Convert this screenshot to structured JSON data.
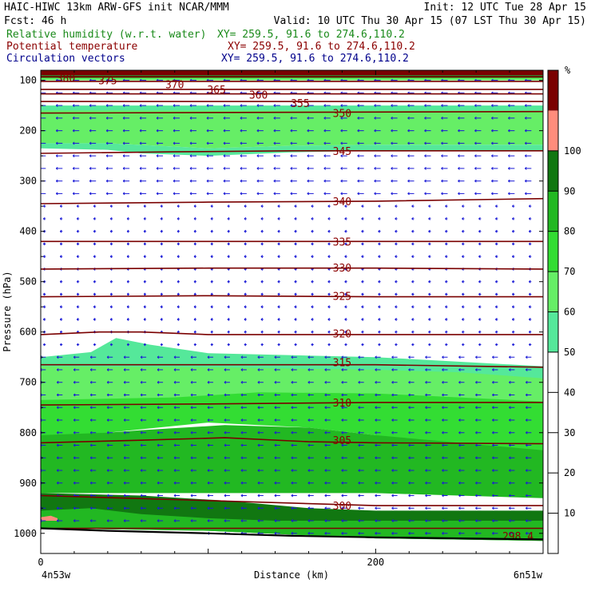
{
  "header": {
    "title_line": "HAIC-HIWC 13km ARW-GFS init    NCAR/MMM",
    "init": "Init: 12 UTC Tue 28 Apr 15",
    "fcst": "Fcst:   46 h",
    "valid": "Valid: 10 UTC Thu 30 Apr 15 (07 LST Thu 30 Apr 15)",
    "fields": [
      {
        "name": "Relative humidity (w.r.t. water)",
        "xy": "XY= 259.5, 91.6 to 274.6,110.2",
        "color": "#1a8a1a"
      },
      {
        "name": "Potential temperature",
        "xy": "XY= 259.5, 91.6 to 274.6,110.2",
        "color": "#8b0000"
      },
      {
        "name": "Circulation vectors",
        "xy": "XY= 259.5, 91.6 to 274.6,110.2",
        "color": "#00008b"
      }
    ]
  },
  "chart_data": {
    "type": "heatmap",
    "title": "",
    "xlabel": "Distance (km)",
    "ylabel": "Pressure (hPa)",
    "xlim": [
      0,
      300
    ],
    "ylim": [
      1050,
      50
    ],
    "x_ticks": [
      {
        "value": 0,
        "label": "0"
      },
      {
        "value": 200,
        "label": "200"
      }
    ],
    "x_endpoints": [
      "4n53w",
      "6n51w"
    ],
    "y_ticks": [
      100,
      200,
      300,
      400,
      500,
      600,
      700,
      800,
      900,
      1000
    ],
    "colorbar": {
      "unit": "%",
      "levels": [
        10,
        20,
        30,
        40,
        50,
        60,
        70,
        80,
        90,
        100
      ],
      "bins": [
        {
          "from": 0,
          "to": 50,
          "color": "#ffffff"
        },
        {
          "from": 50,
          "to": 60,
          "color": "#55e89a"
        },
        {
          "from": 60,
          "to": 70,
          "color": "#66ee66"
        },
        {
          "from": 70,
          "to": 80,
          "color": "#33dd33"
        },
        {
          "from": 80,
          "to": 90,
          "color": "#22b822"
        },
        {
          "from": 90,
          "to": 100,
          "color": "#117711"
        },
        {
          "from": 100,
          "to": 110,
          "color": "#ff8d7c"
        },
        {
          "from": 110,
          "to": 120,
          "color": "#7a0000"
        }
      ]
    },
    "rh_regions": [
      {
        "rh": 110,
        "color": "#7a0000",
        "top": [
          [
            0,
            50
          ],
          [
            300,
            50
          ]
        ],
        "bottom": [
          [
            0,
            90
          ],
          [
            300,
            90
          ]
        ]
      },
      {
        "rh": 95,
        "color": "#117711",
        "top": [
          [
            0,
            90
          ],
          [
            300,
            90
          ]
        ],
        "bottom": [
          [
            0,
            95
          ],
          [
            300,
            95
          ]
        ]
      },
      {
        "rh": 65,
        "color": "#66ee66",
        "top": [
          [
            0,
            95
          ],
          [
            300,
            95
          ]
        ],
        "bottom": [
          [
            0,
            100
          ],
          [
            300,
            100
          ]
        ]
      },
      {
        "rh": 55,
        "color": "#55e89a",
        "top": [
          [
            0,
            150
          ],
          [
            300,
            150
          ]
        ],
        "bottom": [
          [
            0,
            175
          ],
          [
            300,
            175
          ]
        ]
      },
      {
        "rh": 65,
        "color": "#66ee66",
        "top": [
          [
            0,
            160
          ],
          [
            300,
            160
          ]
        ],
        "bottom": [
          [
            0,
            225
          ],
          [
            40,
            225
          ],
          [
            100,
            235
          ],
          [
            150,
            230
          ],
          [
            200,
            228
          ],
          [
            300,
            228
          ]
        ]
      },
      {
        "rh": 55,
        "color": "#55e89a",
        "top": [
          [
            0,
            225
          ],
          [
            40,
            225
          ],
          [
            100,
            235
          ],
          [
            150,
            230
          ],
          [
            200,
            228
          ],
          [
            300,
            228
          ]
        ],
        "bottom": [
          [
            0,
            235
          ],
          [
            40,
            238
          ],
          [
            60,
            245
          ],
          [
            100,
            250
          ],
          [
            150,
            243
          ],
          [
            200,
            240
          ],
          [
            300,
            240
          ]
        ]
      },
      {
        "rh": 55,
        "color": "#55e89a",
        "top": [
          [
            0,
            650
          ],
          [
            30,
            640
          ],
          [
            45,
            612
          ],
          [
            65,
            625
          ],
          [
            100,
            642
          ],
          [
            200,
            650
          ],
          [
            300,
            668
          ]
        ],
        "bottom": [
          [
            0,
            692
          ],
          [
            100,
            700
          ],
          [
            200,
            705
          ],
          [
            300,
            710
          ]
        ]
      },
      {
        "rh": 65,
        "color": "#66ee66",
        "top": [
          [
            0,
            668
          ],
          [
            100,
            670
          ],
          [
            200,
            675
          ],
          [
            250,
            680
          ],
          [
            300,
            692
          ]
        ],
        "bottom": [
          [
            0,
            740
          ],
          [
            100,
            740
          ],
          [
            200,
            742
          ],
          [
            300,
            744
          ]
        ]
      },
      {
        "rh": 75,
        "color": "#33dd33",
        "top": [
          [
            0,
            735
          ],
          [
            80,
            730
          ],
          [
            130,
            720
          ],
          [
            200,
            722
          ],
          [
            250,
            730
          ],
          [
            300,
            738
          ]
        ],
        "bottom": [
          [
            0,
            812
          ],
          [
            40,
            800
          ],
          [
            100,
            780
          ],
          [
            160,
            790
          ],
          [
            200,
            805
          ],
          [
            240,
            840
          ],
          [
            300,
            862
          ]
        ]
      },
      {
        "rh": 85,
        "color": "#22b822",
        "top": [
          [
            0,
            805
          ],
          [
            40,
            800
          ],
          [
            60,
            795
          ],
          [
            110,
            785
          ],
          [
            160,
            790
          ],
          [
            200,
            805
          ],
          [
            250,
            820
          ],
          [
            300,
            835
          ]
        ],
        "bottom": [
          [
            0,
            920
          ],
          [
            100,
            920
          ],
          [
            200,
            920
          ],
          [
            300,
            930
          ]
        ]
      },
      {
        "rh": 95,
        "color": "#117711",
        "top": [
          [
            0,
            920
          ],
          [
            60,
            925
          ],
          [
            110,
            935
          ],
          [
            160,
            950
          ],
          [
            200,
            955
          ],
          [
            300,
            955
          ]
        ],
        "bottom": [
          [
            0,
            990
          ],
          [
            100,
            995
          ],
          [
            200,
            1010
          ],
          [
            300,
            1015
          ]
        ]
      },
      {
        "rh": 85,
        "color": "#22b822",
        "top": [
          [
            0,
            955
          ],
          [
            30,
            950
          ],
          [
            60,
            962
          ],
          [
            100,
            970
          ],
          [
            140,
            975
          ],
          [
            200,
            975
          ],
          [
            300,
            975
          ]
        ],
        "bottom": [
          [
            0,
            990
          ],
          [
            100,
            995
          ],
          [
            200,
            1010
          ],
          [
            300,
            1015
          ]
        ]
      },
      {
        "rh": 105,
        "color": "#ff8d7c",
        "top": [
          [
            0,
            968
          ],
          [
            6,
            965
          ],
          [
            10,
            970
          ]
        ],
        "bottom": [
          [
            0,
            975
          ],
          [
            6,
            975
          ],
          [
            10,
            975
          ]
        ]
      }
    ],
    "theta_contours": [
      {
        "value": 380,
        "label": "380",
        "points": [
          [
            0,
            88
          ],
          [
            300,
            88
          ]
        ],
        "label_at": [
          15,
          95
        ]
      },
      {
        "value": 375,
        "label": "375",
        "points": [
          [
            0,
            93
          ],
          [
            300,
            93
          ]
        ],
        "label_at": [
          40,
          100
        ]
      },
      {
        "value": 370,
        "label": "370",
        "points": [
          [
            0,
            102
          ],
          [
            300,
            102
          ]
        ],
        "label_at": [
          80,
          108
        ]
      },
      {
        "value": 365,
        "label": "365",
        "points": [
          [
            0,
            118
          ],
          [
            300,
            118
          ]
        ],
        "label_at": [
          105,
          118
        ]
      },
      {
        "value": 360,
        "label": "360",
        "points": [
          [
            0,
            127
          ],
          [
            300,
            127
          ]
        ],
        "label_at": [
          130,
          128
        ]
      },
      {
        "value": 355,
        "label": "355",
        "points": [
          [
            0,
            142
          ],
          [
            300,
            142
          ]
        ],
        "label_at": [
          155,
          145
        ]
      },
      {
        "value": 350,
        "label": "350",
        "points": [
          [
            0,
            165
          ],
          [
            300,
            162
          ]
        ],
        "label_at": [
          180,
          165
        ]
      },
      {
        "value": 345,
        "label": "345",
        "points": [
          [
            0,
            245
          ],
          [
            80,
            242
          ],
          [
            150,
            240
          ],
          [
            300,
            240
          ]
        ],
        "label_at": [
          180,
          240
        ]
      },
      {
        "value": 340,
        "label": "340",
        "points": [
          [
            0,
            345
          ],
          [
            100,
            342
          ],
          [
            200,
            340
          ],
          [
            300,
            335
          ]
        ],
        "label_at": [
          180,
          340
        ]
      },
      {
        "value": 335,
        "label": "335",
        "points": [
          [
            0,
            420
          ],
          [
            100,
            420
          ],
          [
            200,
            420
          ],
          [
            300,
            420
          ]
        ],
        "label_at": [
          180,
          420
        ]
      },
      {
        "value": 330,
        "label": "330",
        "points": [
          [
            0,
            475
          ],
          [
            100,
            473
          ],
          [
            200,
            473
          ],
          [
            300,
            475
          ]
        ],
        "label_at": [
          180,
          472
        ]
      },
      {
        "value": 325,
        "label": "325",
        "points": [
          [
            0,
            530
          ],
          [
            100,
            528
          ],
          [
            200,
            530
          ],
          [
            300,
            530
          ]
        ],
        "label_at": [
          180,
          528
        ]
      },
      {
        "value": 320,
        "label": "320",
        "points": [
          [
            0,
            605
          ],
          [
            35,
            600
          ],
          [
            60,
            600
          ],
          [
            100,
            605
          ],
          [
            200,
            605
          ],
          [
            300,
            605
          ]
        ],
        "label_at": [
          180,
          603
        ]
      },
      {
        "value": 315,
        "label": "315",
        "points": [
          [
            0,
            665
          ],
          [
            100,
            665
          ],
          [
            200,
            665
          ],
          [
            300,
            670
          ]
        ],
        "label_at": [
          180,
          660
        ]
      },
      {
        "value": 310,
        "label": "310",
        "points": [
          [
            0,
            745
          ],
          [
            100,
            743
          ],
          [
            200,
            740
          ],
          [
            300,
            740
          ]
        ],
        "label_at": [
          180,
          740
        ]
      },
      {
        "value": 305,
        "label": "305",
        "points": [
          [
            0,
            820
          ],
          [
            60,
            815
          ],
          [
            110,
            810
          ],
          [
            160,
            818
          ],
          [
            200,
            820
          ],
          [
            300,
            822
          ]
        ],
        "label_at": [
          180,
          815
        ]
      },
      {
        "value": 300,
        "label": "300",
        "points": [
          [
            0,
            925
          ],
          [
            100,
            935
          ],
          [
            200,
            945
          ],
          [
            300,
            945
          ]
        ],
        "label_at": [
          180,
          945
        ]
      },
      {
        "value": 298.4,
        "label": "298.4",
        "points": [
          [
            0,
            990
          ],
          [
            300,
            990
          ]
        ],
        "label_at": [
          285,
          1005
        ]
      }
    ],
    "terrain": [
      [
        0,
        990
      ],
      [
        40,
        995
      ],
      [
        100,
        1000
      ],
      [
        150,
        1005
      ],
      [
        200,
        1008
      ],
      [
        250,
        1010
      ],
      [
        300,
        1012
      ]
    ],
    "vectors": {
      "direction": "east-to-west",
      "pressure_step": 25,
      "x_step": 10
    }
  }
}
